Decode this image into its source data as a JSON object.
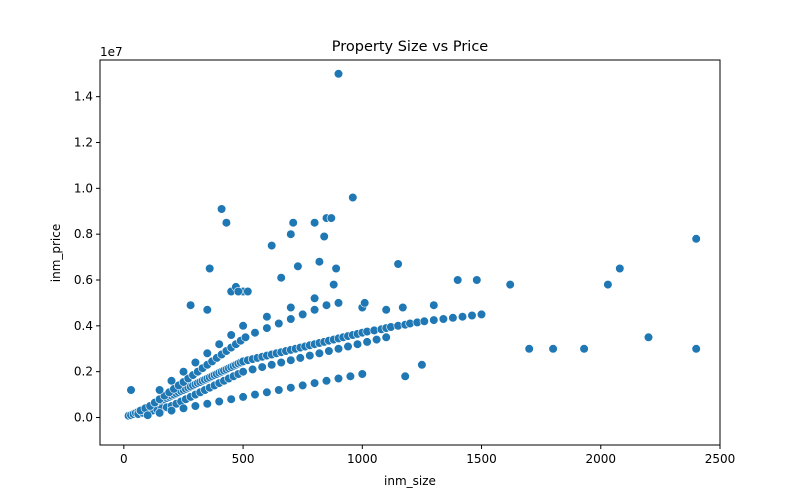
{
  "chart_data": {
    "type": "scatter",
    "title": "Property Size vs Price",
    "xlabel": "inm_size",
    "ylabel": "inm_price",
    "y_scale_label": "1e7",
    "xlim": [
      -100,
      2500
    ],
    "ylim": [
      -1200000,
      15600000
    ],
    "x_ticks": [
      0,
      500,
      1000,
      1500,
      2000,
      2500
    ],
    "x_tick_labels": [
      "0",
      "500",
      "1000",
      "1500",
      "2000",
      "2500"
    ],
    "y_ticks": [
      0,
      2000000,
      4000000,
      6000000,
      8000000,
      10000000,
      12000000,
      14000000
    ],
    "y_tick_labels": [
      "0.0",
      "0.2",
      "0.4",
      "0.6",
      "0.8",
      "1.0",
      "1.2",
      "1.4"
    ],
    "grid": false,
    "legend": "none",
    "color": "#1f77b4",
    "series": [
      {
        "x": [
          20,
          30,
          40,
          50,
          60,
          70,
          80,
          90,
          100,
          110,
          120,
          130,
          140,
          150,
          160,
          170,
          180,
          190,
          200,
          210,
          220,
          230,
          240,
          250,
          260,
          270,
          280,
          290,
          300,
          310,
          320,
          330,
          340,
          350,
          360,
          370,
          380,
          390,
          400,
          410,
          420,
          430,
          440,
          450,
          460,
          470,
          480,
          490,
          500,
          520,
          540,
          560,
          580,
          600,
          620,
          640,
          660,
          680,
          700,
          720,
          740,
          760,
          780,
          800,
          820,
          840,
          860,
          880,
          900,
          920,
          940,
          960,
          980,
          1000,
          1020,
          1050,
          1080,
          1100,
          1120,
          1150,
          1180,
          1200,
          1230,
          1260,
          1300,
          1340,
          1380,
          1420,
          1460,
          1500,
          60,
          80,
          100,
          120,
          140,
          160,
          180,
          200,
          220,
          240,
          260,
          280,
          300,
          320,
          340,
          360,
          380,
          400,
          420,
          440,
          460,
          480,
          500,
          540,
          580,
          620,
          660,
          700,
          740,
          780,
          820,
          860,
          900,
          940,
          980,
          1020,
          1060,
          1100,
          70,
          90,
          110,
          130,
          150,
          170,
          190,
          210,
          230,
          250,
          270,
          290,
          310,
          330,
          350,
          370,
          390,
          410,
          430,
          450,
          470,
          490,
          510,
          550,
          600,
          650,
          700,
          750,
          800,
          850,
          900,
          100,
          150,
          200,
          250,
          300,
          350,
          400,
          450,
          500,
          550,
          600,
          650,
          700,
          750,
          800,
          850,
          900,
          950,
          1000,
          150,
          200,
          250,
          300,
          350,
          400,
          450,
          500,
          600,
          700,
          800,
          30,
          410,
          450,
          470,
          500,
          520,
          350,
          360,
          280,
          430,
          480,
          620,
          660,
          700,
          710,
          730,
          800,
          820,
          840,
          850,
          870,
          890,
          900,
          960,
          880,
          1000,
          1010,
          1100,
          1150,
          1170,
          1300,
          1400,
          1480,
          1620,
          1700,
          1800,
          1930,
          2030,
          2080,
          2200,
          2400,
          2400,
          1180,
          1250
        ],
        "y": [
          80000,
          100000,
          150000,
          200000,
          250000,
          300000,
          350000,
          400000,
          450000,
          500000,
          550000,
          600000,
          650000,
          700000,
          750000,
          800000,
          850000,
          900000,
          950000,
          1000000,
          1050000,
          1100000,
          1150000,
          1200000,
          1250000,
          1300000,
          1350000,
          1400000,
          1450000,
          1500000,
          1550000,
          1600000,
          1650000,
          1700000,
          1750000,
          1800000,
          1850000,
          1900000,
          1950000,
          2000000,
          2050000,
          2100000,
          2150000,
          2200000,
          2250000,
          2300000,
          2350000,
          2400000,
          2450000,
          2500000,
          2550000,
          2600000,
          2650000,
          2700000,
          2750000,
          2800000,
          2850000,
          2900000,
          2950000,
          3000000,
          3050000,
          3100000,
          3150000,
          3200000,
          3250000,
          3300000,
          3350000,
          3400000,
          3450000,
          3500000,
          3550000,
          3600000,
          3650000,
          3700000,
          3750000,
          3800000,
          3850000,
          3900000,
          3950000,
          4000000,
          4050000,
          4100000,
          4150000,
          4200000,
          4250000,
          4300000,
          4350000,
          4400000,
          4450000,
          4500000,
          150000,
          200000,
          250000,
          300000,
          350000,
          400000,
          450000,
          500000,
          600000,
          700000,
          800000,
          900000,
          1000000,
          1100000,
          1200000,
          1300000,
          1400000,
          1500000,
          1600000,
          1700000,
          1800000,
          1900000,
          2000000,
          2100000,
          2200000,
          2300000,
          2400000,
          2500000,
          2600000,
          2700000,
          2800000,
          2900000,
          3000000,
          3100000,
          3200000,
          3300000,
          3400000,
          3500000,
          300000,
          400000,
          500000,
          650000,
          800000,
          950000,
          1100000,
          1250000,
          1400000,
          1550000,
          1700000,
          1850000,
          2000000,
          2150000,
          2300000,
          2450000,
          2600000,
          2750000,
          2900000,
          3050000,
          3200000,
          3350000,
          3500000,
          3700000,
          3900000,
          4100000,
          4300000,
          4500000,
          4700000,
          4900000,
          5000000,
          100000,
          200000,
          300000,
          400000,
          500000,
          600000,
          700000,
          800000,
          900000,
          1000000,
          1100000,
          1200000,
          1300000,
          1400000,
          1500000,
          1600000,
          1700000,
          1800000,
          1900000,
          1200000,
          1600000,
          2000000,
          2400000,
          2800000,
          3200000,
          3600000,
          4000000,
          4400000,
          4800000,
          5200000,
          1200000,
          9100000,
          5500000,
          5700000,
          5500000,
          5500000,
          4700000,
          6500000,
          4900000,
          8500000,
          5500000,
          7500000,
          6100000,
          8000000,
          8500000,
          6600000,
          8500000,
          6800000,
          7900000,
          8700000,
          8700000,
          6500000,
          15000000,
          9600000,
          5800000,
          4800000,
          5000000,
          4700000,
          6700000,
          4800000,
          4900000,
          6000000,
          6000000,
          5800000,
          3000000,
          3000000,
          3000000,
          5800000,
          6500000,
          3500000,
          7800000,
          3000000,
          1800000,
          2300000
        ]
      }
    ]
  }
}
